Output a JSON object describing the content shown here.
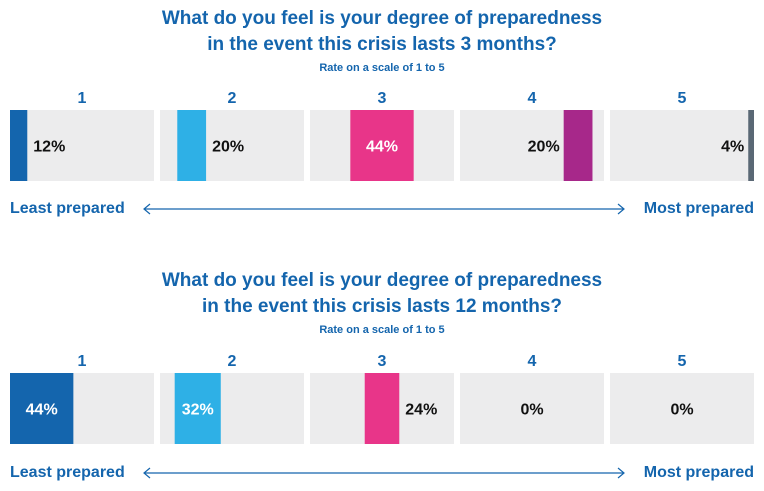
{
  "chart_data": [
    {
      "type": "bar",
      "title_line1": "What do you feel is your degree of preparedness",
      "title_line2": "in the event this crisis lasts 3 months?",
      "subtitle": "Rate on a scale of 1 to 5",
      "categories": [
        "1",
        "2",
        "3",
        "4",
        "5"
      ],
      "values": [
        12,
        20,
        44,
        20,
        4
      ],
      "labels": [
        "12%",
        "20%",
        "44%",
        "20%",
        "4%"
      ],
      "ylim": [
        0,
        100
      ],
      "colors": [
        "#1465ad",
        "#2eb0e6",
        "#e83589",
        "#a7288a",
        "#5a6875"
      ],
      "panel_color": "#ececed",
      "left_label": "Least prepared",
      "right_label": "Most prepared"
    },
    {
      "type": "bar",
      "title_line1": "What do you feel is your degree of preparedness",
      "title_line2": "in the event this crisis lasts 12 months?",
      "subtitle": "Rate on a scale of 1 to 5",
      "categories": [
        "1",
        "2",
        "3",
        "4",
        "5"
      ],
      "values": [
        44,
        32,
        24,
        0,
        0
      ],
      "labels": [
        "44%",
        "32%",
        "24%",
        "0%",
        "0%"
      ],
      "ylim": [
        0,
        100
      ],
      "colors": [
        "#1465ad",
        "#2eb0e6",
        "#e83589",
        "#a7288a",
        "#5a6875"
      ],
      "panel_color": "#ececed",
      "left_label": "Least prepared",
      "right_label": "Most prepared"
    }
  ]
}
